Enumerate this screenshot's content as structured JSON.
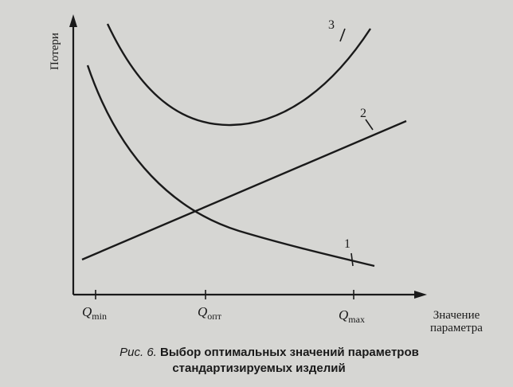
{
  "axes": {
    "y_label": "Потери",
    "x_label": [
      "Значение",
      "параметра"
    ]
  },
  "x_marks": [
    {
      "symbol": "Q",
      "subscript": "min"
    },
    {
      "symbol": "Q",
      "subscript": "опт"
    },
    {
      "symbol": "Q",
      "subscript": "max"
    }
  ],
  "curves": [
    {
      "label": "1"
    },
    {
      "label": "2"
    },
    {
      "label": "3"
    }
  ],
  "caption": {
    "number": "Рис. 6.",
    "title": [
      "Выбор оптимальных значений параметров",
      "стандартизируемых изделий"
    ]
  }
}
